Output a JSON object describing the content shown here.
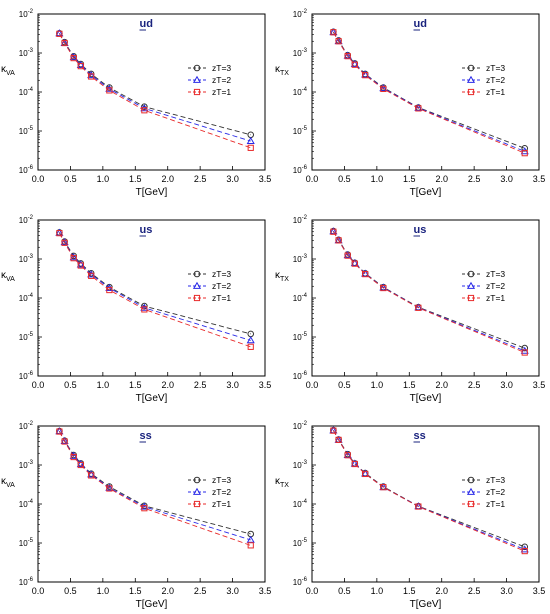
{
  "styles": {
    "zT3": {
      "color": "#333333",
      "marker": "circle",
      "dash": "5,3"
    },
    "zT2": {
      "color": "#2a2ae8",
      "marker": "triangle",
      "dash": "5,3"
    },
    "zT1": {
      "color": "#e82a2a",
      "marker": "square",
      "dash": "5,3"
    },
    "title_color": "#1a237e"
  },
  "chart_data": [
    {
      "type": "line",
      "title": "ud",
      "title_underlined_char": "u",
      "xlabel": "T[GeV]",
      "ylabel_main": "κ",
      "ylabel_sub": "VA",
      "xlim": [
        0.0,
        3.5
      ],
      "ylim_log10": [
        -6,
        -2
      ],
      "x_ticks": [
        "0.0",
        "0.5",
        "1.0",
        "1.5",
        "2.0",
        "2.5",
        "3.0",
        "3.5"
      ],
      "y_ticks": [
        {
          "base": "10",
          "exp": "-6"
        },
        {
          "base": "10",
          "exp": "-5"
        },
        {
          "base": "10",
          "exp": "-4"
        },
        {
          "base": "10",
          "exp": "-3"
        },
        {
          "base": "10",
          "exp": "-2"
        }
      ],
      "legend_position": "right",
      "x": [
        0.33,
        0.41,
        0.55,
        0.66,
        0.82,
        1.1,
        1.64,
        3.28
      ],
      "series": [
        {
          "name": "zT=3",
          "style": "zT3",
          "values": [
            0.0032,
            0.0019,
            0.00082,
            0.00052,
            0.00029,
            0.00013,
            4.2e-05,
            8e-06
          ]
        },
        {
          "name": "zT=2",
          "style": "zT2",
          "values": [
            0.0032,
            0.0018,
            0.00078,
            0.00049,
            0.00027,
            0.00012,
            3.8e-05,
            5.5e-06
          ]
        },
        {
          "name": "zT=1",
          "style": "zT1",
          "values": [
            0.0031,
            0.0018,
            0.00074,
            0.00046,
            0.00025,
            0.00011,
            3.4e-05,
            3.7e-06
          ]
        }
      ]
    },
    {
      "type": "line",
      "title": "ud",
      "title_underlined_char": "u",
      "xlabel": "T[GeV]",
      "ylabel_main": "κ",
      "ylabel_sub": "TX",
      "xlim": [
        0.0,
        3.5
      ],
      "ylim_log10": [
        -6,
        -2
      ],
      "x_ticks": [
        "0.0",
        "0.5",
        "1.0",
        "1.5",
        "2.0",
        "2.5",
        "3.0",
        "3.5"
      ],
      "y_ticks": [
        {
          "base": "10",
          "exp": "-6"
        },
        {
          "base": "10",
          "exp": "-5"
        },
        {
          "base": "10",
          "exp": "-4"
        },
        {
          "base": "10",
          "exp": "-3"
        },
        {
          "base": "10",
          "exp": "-2"
        }
      ],
      "legend_position": "right",
      "x": [
        0.33,
        0.41,
        0.55,
        0.66,
        0.82,
        1.1,
        1.64,
        3.28
      ],
      "series": [
        {
          "name": "zT=3",
          "style": "zT3",
          "values": [
            0.0035,
            0.0021,
            0.00088,
            0.00054,
            0.00029,
            0.00013,
            4e-05,
            3.6e-06
          ]
        },
        {
          "name": "zT=2",
          "style": "zT2",
          "values": [
            0.0034,
            0.002,
            0.00085,
            0.00052,
            0.00028,
            0.000125,
            3.9e-05,
            3e-06
          ]
        },
        {
          "name": "zT=1",
          "style": "zT1",
          "values": [
            0.0034,
            0.002,
            0.00083,
            0.0005,
            0.00027,
            0.00012,
            3.8e-05,
            2.7e-06
          ]
        }
      ]
    },
    {
      "type": "line",
      "title": "us",
      "title_underlined_char": "u",
      "xlabel": "T[GeV]",
      "ylabel_main": "κ",
      "ylabel_sub": "VA",
      "xlim": [
        0.0,
        3.5
      ],
      "ylim_log10": [
        -6,
        -2
      ],
      "x_ticks": [
        "0.0",
        "0.5",
        "1.0",
        "1.5",
        "2.0",
        "2.5",
        "3.0",
        "3.5"
      ],
      "y_ticks": [
        {
          "base": "10",
          "exp": "-6"
        },
        {
          "base": "10",
          "exp": "-5"
        },
        {
          "base": "10",
          "exp": "-4"
        },
        {
          "base": "10",
          "exp": "-3"
        },
        {
          "base": "10",
          "exp": "-2"
        }
      ],
      "legend_position": "right",
      "x": [
        0.33,
        0.41,
        0.55,
        0.66,
        0.82,
        1.1,
        1.64,
        3.28
      ],
      "series": [
        {
          "name": "zT=3",
          "style": "zT3",
          "values": [
            0.0048,
            0.0028,
            0.0012,
            0.00077,
            0.00043,
            0.00019,
            6.2e-05,
            1.2e-05
          ]
        },
        {
          "name": "zT=2",
          "style": "zT2",
          "values": [
            0.0047,
            0.0027,
            0.0011,
            0.00072,
            0.0004,
            0.00018,
            5.6e-05,
            8.2e-06
          ]
        },
        {
          "name": "zT=1",
          "style": "zT1",
          "values": [
            0.0046,
            0.0026,
            0.00105,
            0.00068,
            0.00037,
            0.00016,
            5.1e-05,
            5.6e-06
          ]
        }
      ]
    },
    {
      "type": "line",
      "title": "us",
      "title_underlined_char": "u",
      "xlabel": "T[GeV]",
      "ylabel_main": "κ",
      "ylabel_sub": "TX",
      "xlim": [
        0.0,
        3.5
      ],
      "ylim_log10": [
        -6,
        -2
      ],
      "x_ticks": [
        "0.0",
        "0.5",
        "1.0",
        "1.5",
        "2.0",
        "2.5",
        "3.0",
        "3.5"
      ],
      "y_ticks": [
        {
          "base": "10",
          "exp": "-6"
        },
        {
          "base": "10",
          "exp": "-5"
        },
        {
          "base": "10",
          "exp": "-4"
        },
        {
          "base": "10",
          "exp": "-3"
        },
        {
          "base": "10",
          "exp": "-2"
        }
      ],
      "legend_position": "right",
      "x": [
        0.33,
        0.41,
        0.55,
        0.66,
        0.82,
        1.1,
        1.64,
        3.28
      ],
      "series": [
        {
          "name": "zT=3",
          "style": "zT3",
          "values": [
            0.0052,
            0.0031,
            0.0013,
            0.0008,
            0.00043,
            0.00019,
            5.8e-05,
            5.2e-06
          ]
        },
        {
          "name": "zT=2",
          "style": "zT2",
          "values": [
            0.0051,
            0.003,
            0.00125,
            0.00078,
            0.00042,
            0.000185,
            5.7e-05,
            4.4e-06
          ]
        },
        {
          "name": "zT=1",
          "style": "zT1",
          "values": [
            0.005,
            0.003,
            0.00122,
            0.00076,
            0.00041,
            0.00018,
            5.6e-05,
            4e-06
          ]
        }
      ]
    },
    {
      "type": "line",
      "title": "ss",
      "title_underlined_char": "s",
      "xlabel": "T[GeV]",
      "ylabel_main": "κ",
      "ylabel_sub": "VA",
      "xlim": [
        0.0,
        3.5
      ],
      "ylim_log10": [
        -6,
        -2
      ],
      "x_ticks": [
        "0.0",
        "0.5",
        "1.0",
        "1.5",
        "2.0",
        "2.5",
        "3.0",
        "3.5"
      ],
      "y_ticks": [
        {
          "base": "10",
          "exp": "-6"
        },
        {
          "base": "10",
          "exp": "-5"
        },
        {
          "base": "10",
          "exp": "-4"
        },
        {
          "base": "10",
          "exp": "-3"
        },
        {
          "base": "10",
          "exp": "-2"
        }
      ],
      "legend_position": "right",
      "x": [
        0.33,
        0.41,
        0.55,
        0.66,
        0.82,
        1.1,
        1.64,
        3.28
      ],
      "series": [
        {
          "name": "zT=3",
          "style": "zT3",
          "values": [
            0.0074,
            0.0042,
            0.0018,
            0.0011,
            0.0006,
            0.00028,
            9e-05,
            1.7e-05
          ]
        },
        {
          "name": "zT=2",
          "style": "zT2",
          "values": [
            0.0073,
            0.0041,
            0.0017,
            0.00105,
            0.00057,
            0.00026,
            8.5e-05,
            1.2e-05
          ]
        },
        {
          "name": "zT=1",
          "style": "zT1",
          "values": [
            0.0072,
            0.004,
            0.0016,
            0.001,
            0.00054,
            0.00025,
            7.8e-05,
            8.7e-06
          ]
        }
      ]
    },
    {
      "type": "line",
      "title": "ss",
      "title_underlined_char": "s",
      "xlabel": "T[GeV]",
      "ylabel_main": "κ",
      "ylabel_sub": "TX",
      "xlim": [
        0.0,
        3.5
      ],
      "ylim_log10": [
        -6,
        -2
      ],
      "x_ticks": [
        "0.0",
        "0.5",
        "1.0",
        "1.5",
        "2.0",
        "2.5",
        "3.0",
        "3.5"
      ],
      "y_ticks": [
        {
          "base": "10",
          "exp": "-6"
        },
        {
          "base": "10",
          "exp": "-5"
        },
        {
          "base": "10",
          "exp": "-4"
        },
        {
          "base": "10",
          "exp": "-3"
        },
        {
          "base": "10",
          "exp": "-2"
        }
      ],
      "legend_position": "right",
      "x": [
        0.33,
        0.41,
        0.55,
        0.66,
        0.82,
        1.1,
        1.64,
        3.28
      ],
      "series": [
        {
          "name": "zT=3",
          "style": "zT3",
          "values": [
            0.0078,
            0.0045,
            0.0019,
            0.0011,
            0.00062,
            0.00028,
            8.8e-05,
            8e-06
          ]
        },
        {
          "name": "zT=2",
          "style": "zT2",
          "values": [
            0.0077,
            0.0044,
            0.0018,
            0.00108,
            0.0006,
            0.00027,
            8.7e-05,
            6.8e-06
          ]
        },
        {
          "name": "zT=1",
          "style": "zT1",
          "values": [
            0.0076,
            0.0044,
            0.00178,
            0.00106,
            0.00059,
            0.00027,
            8.6e-05,
            6.2e-06
          ]
        }
      ]
    }
  ]
}
